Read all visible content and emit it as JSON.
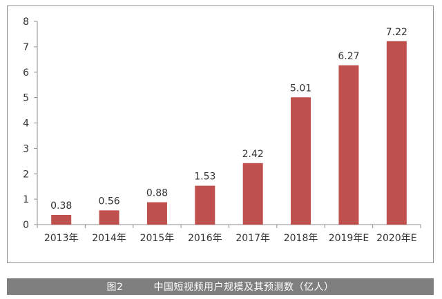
{
  "chart_data": {
    "type": "bar",
    "categories": [
      "2013年",
      "2014年",
      "2015年",
      "2016年",
      "2017年",
      "2018年",
      "2019年E",
      "2020年E"
    ],
    "values": [
      0.38,
      0.56,
      0.88,
      1.53,
      2.42,
      5.01,
      6.27,
      7.22
    ],
    "data_labels": [
      "0.38",
      "0.56",
      "0.88",
      "1.53",
      "2.42",
      "5.01",
      "6.27",
      "7.22"
    ],
    "ylim": [
      0,
      8
    ],
    "yticks": [
      0,
      1,
      2,
      3,
      4,
      5,
      6,
      7,
      8
    ],
    "ytick_labels": [
      "0",
      "1",
      "2",
      "3",
      "4",
      "5",
      "6",
      "7",
      "8"
    ],
    "grid": false,
    "bar_color": "#c0504d"
  },
  "caption": {
    "label": "图2",
    "title": "中国短视频用户规模及其预测数（亿人）"
  }
}
